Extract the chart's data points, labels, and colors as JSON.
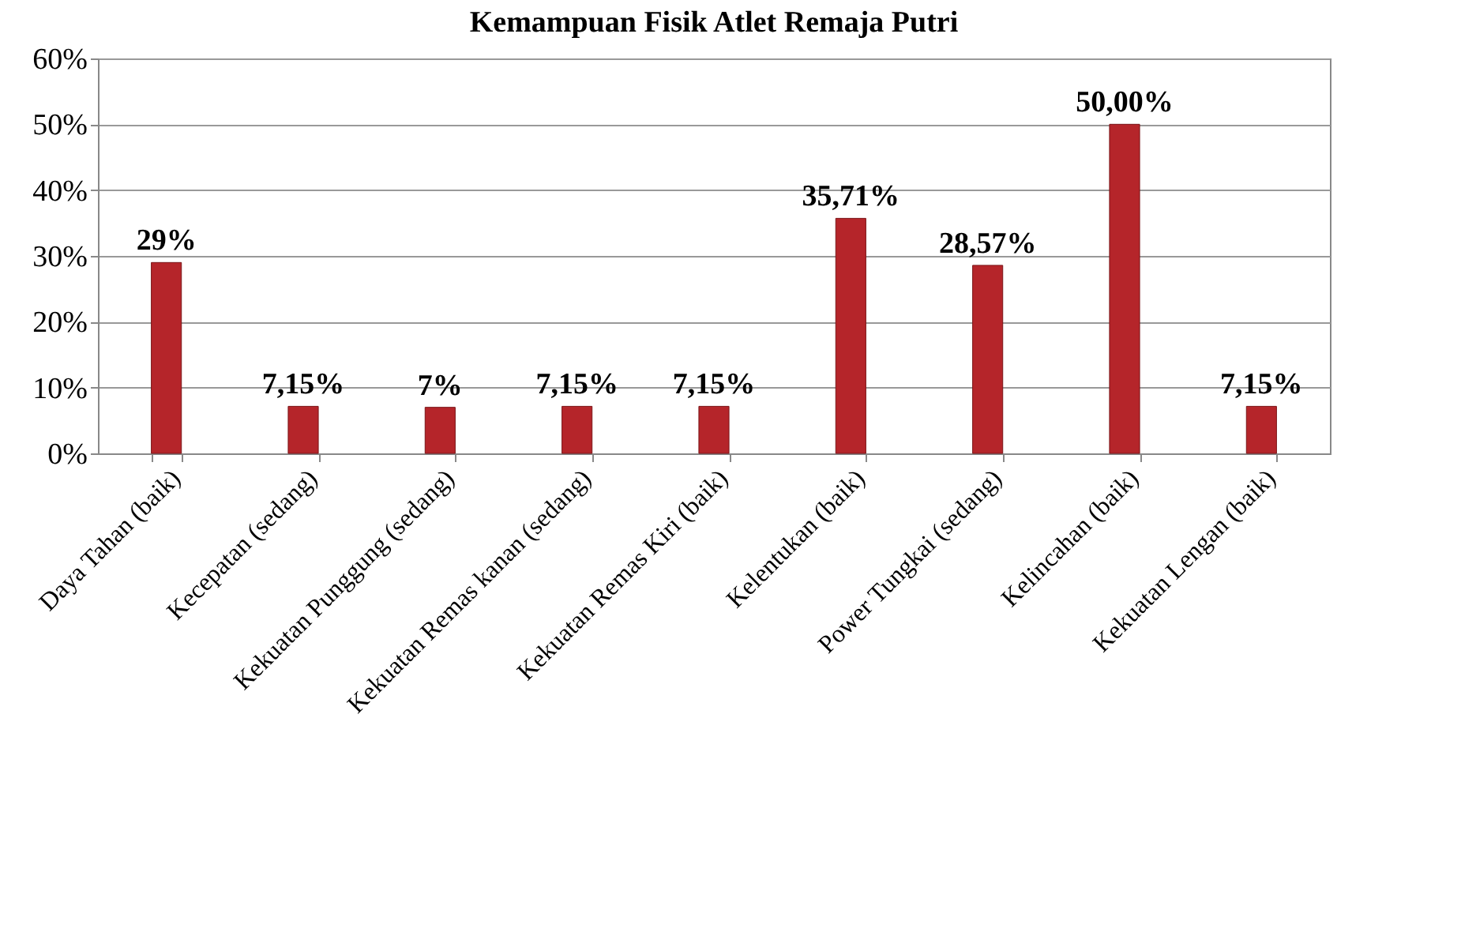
{
  "chart_data": {
    "type": "bar",
    "title": "Kemampuan Fisik Atlet Remaja Putri",
    "categories": [
      "Daya Tahan (baik)",
      "Kecepatan (sedang)",
      "Kekuatan Punggung (sedang)",
      "Kekuatan Remas kanan (sedang)",
      "Kekuatan Remas Kiri (baik)",
      "Kelentukan (baik)",
      "Power Tungkai (sedang)",
      "Kelincahan (baik)",
      "Kekuatan Lengan (baik)"
    ],
    "values": [
      29,
      7.15,
      7,
      7.15,
      7.15,
      35.71,
      28.57,
      50,
      7.15
    ],
    "value_labels": [
      "29%",
      "7,15%",
      "7%",
      "7,15%",
      "7,15%",
      "35,71%",
      "28,57%",
      "50,00%",
      "7,15%"
    ],
    "color": "#b5252a",
    "ylim": [
      0,
      60
    ],
    "yticks": [
      {
        "value": 0,
        "label": "0%"
      },
      {
        "value": 10,
        "label": "10%"
      },
      {
        "value": 20,
        "label": "20%"
      },
      {
        "value": 30,
        "label": "30%"
      },
      {
        "value": 40,
        "label": "40%"
      },
      {
        "value": 50,
        "label": "50%"
      },
      {
        "value": 60,
        "label": "60%"
      }
    ],
    "grid": "y"
  }
}
